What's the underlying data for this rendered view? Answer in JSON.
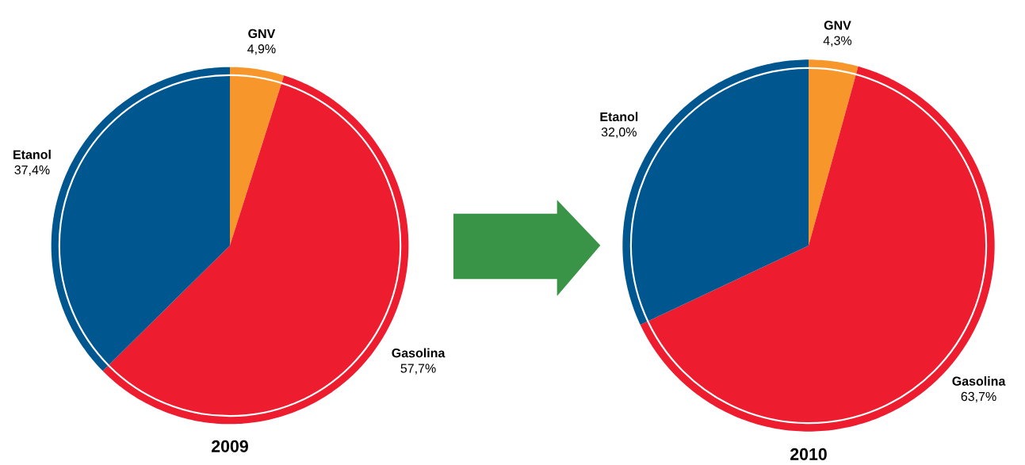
{
  "chart_data": [
    {
      "type": "pie",
      "title": "2009",
      "categories": [
        "GNV",
        "Gasolina",
        "Etanol"
      ],
      "values": [
        4.9,
        57.7,
        37.4
      ],
      "value_labels": [
        "4,9%",
        "57,7%",
        "37,4%"
      ],
      "colors": [
        "#f7962a",
        "#ed1c2e",
        "#00568f"
      ]
    },
    {
      "type": "pie",
      "title": "2010",
      "categories": [
        "GNV",
        "Gasolina",
        "Etanol"
      ],
      "values": [
        4.3,
        63.7,
        32.0
      ],
      "value_labels": [
        "4,3%",
        "63,7%",
        "32,0%"
      ],
      "colors": [
        "#f7962a",
        "#ed1c2e",
        "#00568f"
      ]
    }
  ]
}
